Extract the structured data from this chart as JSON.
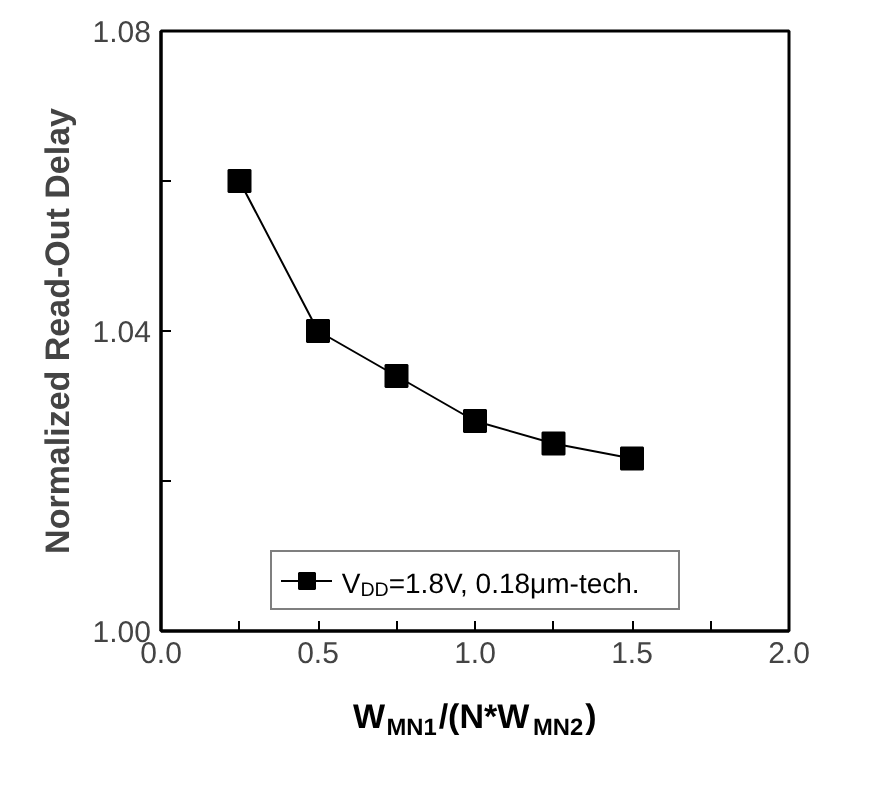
{
  "chart_data": {
    "type": "line",
    "xlabel": "W$_{MN1}$/(N*W$_{MN2}$)",
    "ylabel": "Normalized Read-Out Delay",
    "x": [
      0.25,
      0.5,
      0.75,
      1.0,
      1.25,
      1.5
    ],
    "series": [
      {
        "name": "V$_{DD}$=1.8V, 0.18μm-tech.",
        "color": "#000000",
        "values": [
          1.06,
          1.04,
          1.034,
          1.028,
          1.025,
          1.023
        ]
      }
    ],
    "xlim": [
      0.0,
      2.0
    ],
    "xticks": [
      {
        "value": 0,
        "label": "0.0"
      },
      {
        "value": 0.25,
        "label": null
      },
      {
        "value": 0.5,
        "label": "0.5"
      },
      {
        "value": 0.75,
        "label": null
      },
      {
        "value": 1.0,
        "label": "1.0"
      },
      {
        "value": 1.25,
        "label": null
      },
      {
        "value": 1.5,
        "label": "1.5"
      },
      {
        "value": 1.75,
        "label": null
      },
      {
        "value": 2.0,
        "label": "2.0"
      }
    ],
    "ylim": [
      1.0,
      1.08
    ],
    "yticks": [
      {
        "value": 1.0,
        "label": "1.00"
      },
      {
        "value": 1.02,
        "label": null
      },
      {
        "value": 1.04,
        "label": "1.04"
      },
      {
        "value": 1.06,
        "label": null
      },
      {
        "value": 1.08,
        "label": "1.08"
      }
    ],
    "marker": "square",
    "line_style": "solid",
    "grid": false,
    "legend": "bottom"
  }
}
